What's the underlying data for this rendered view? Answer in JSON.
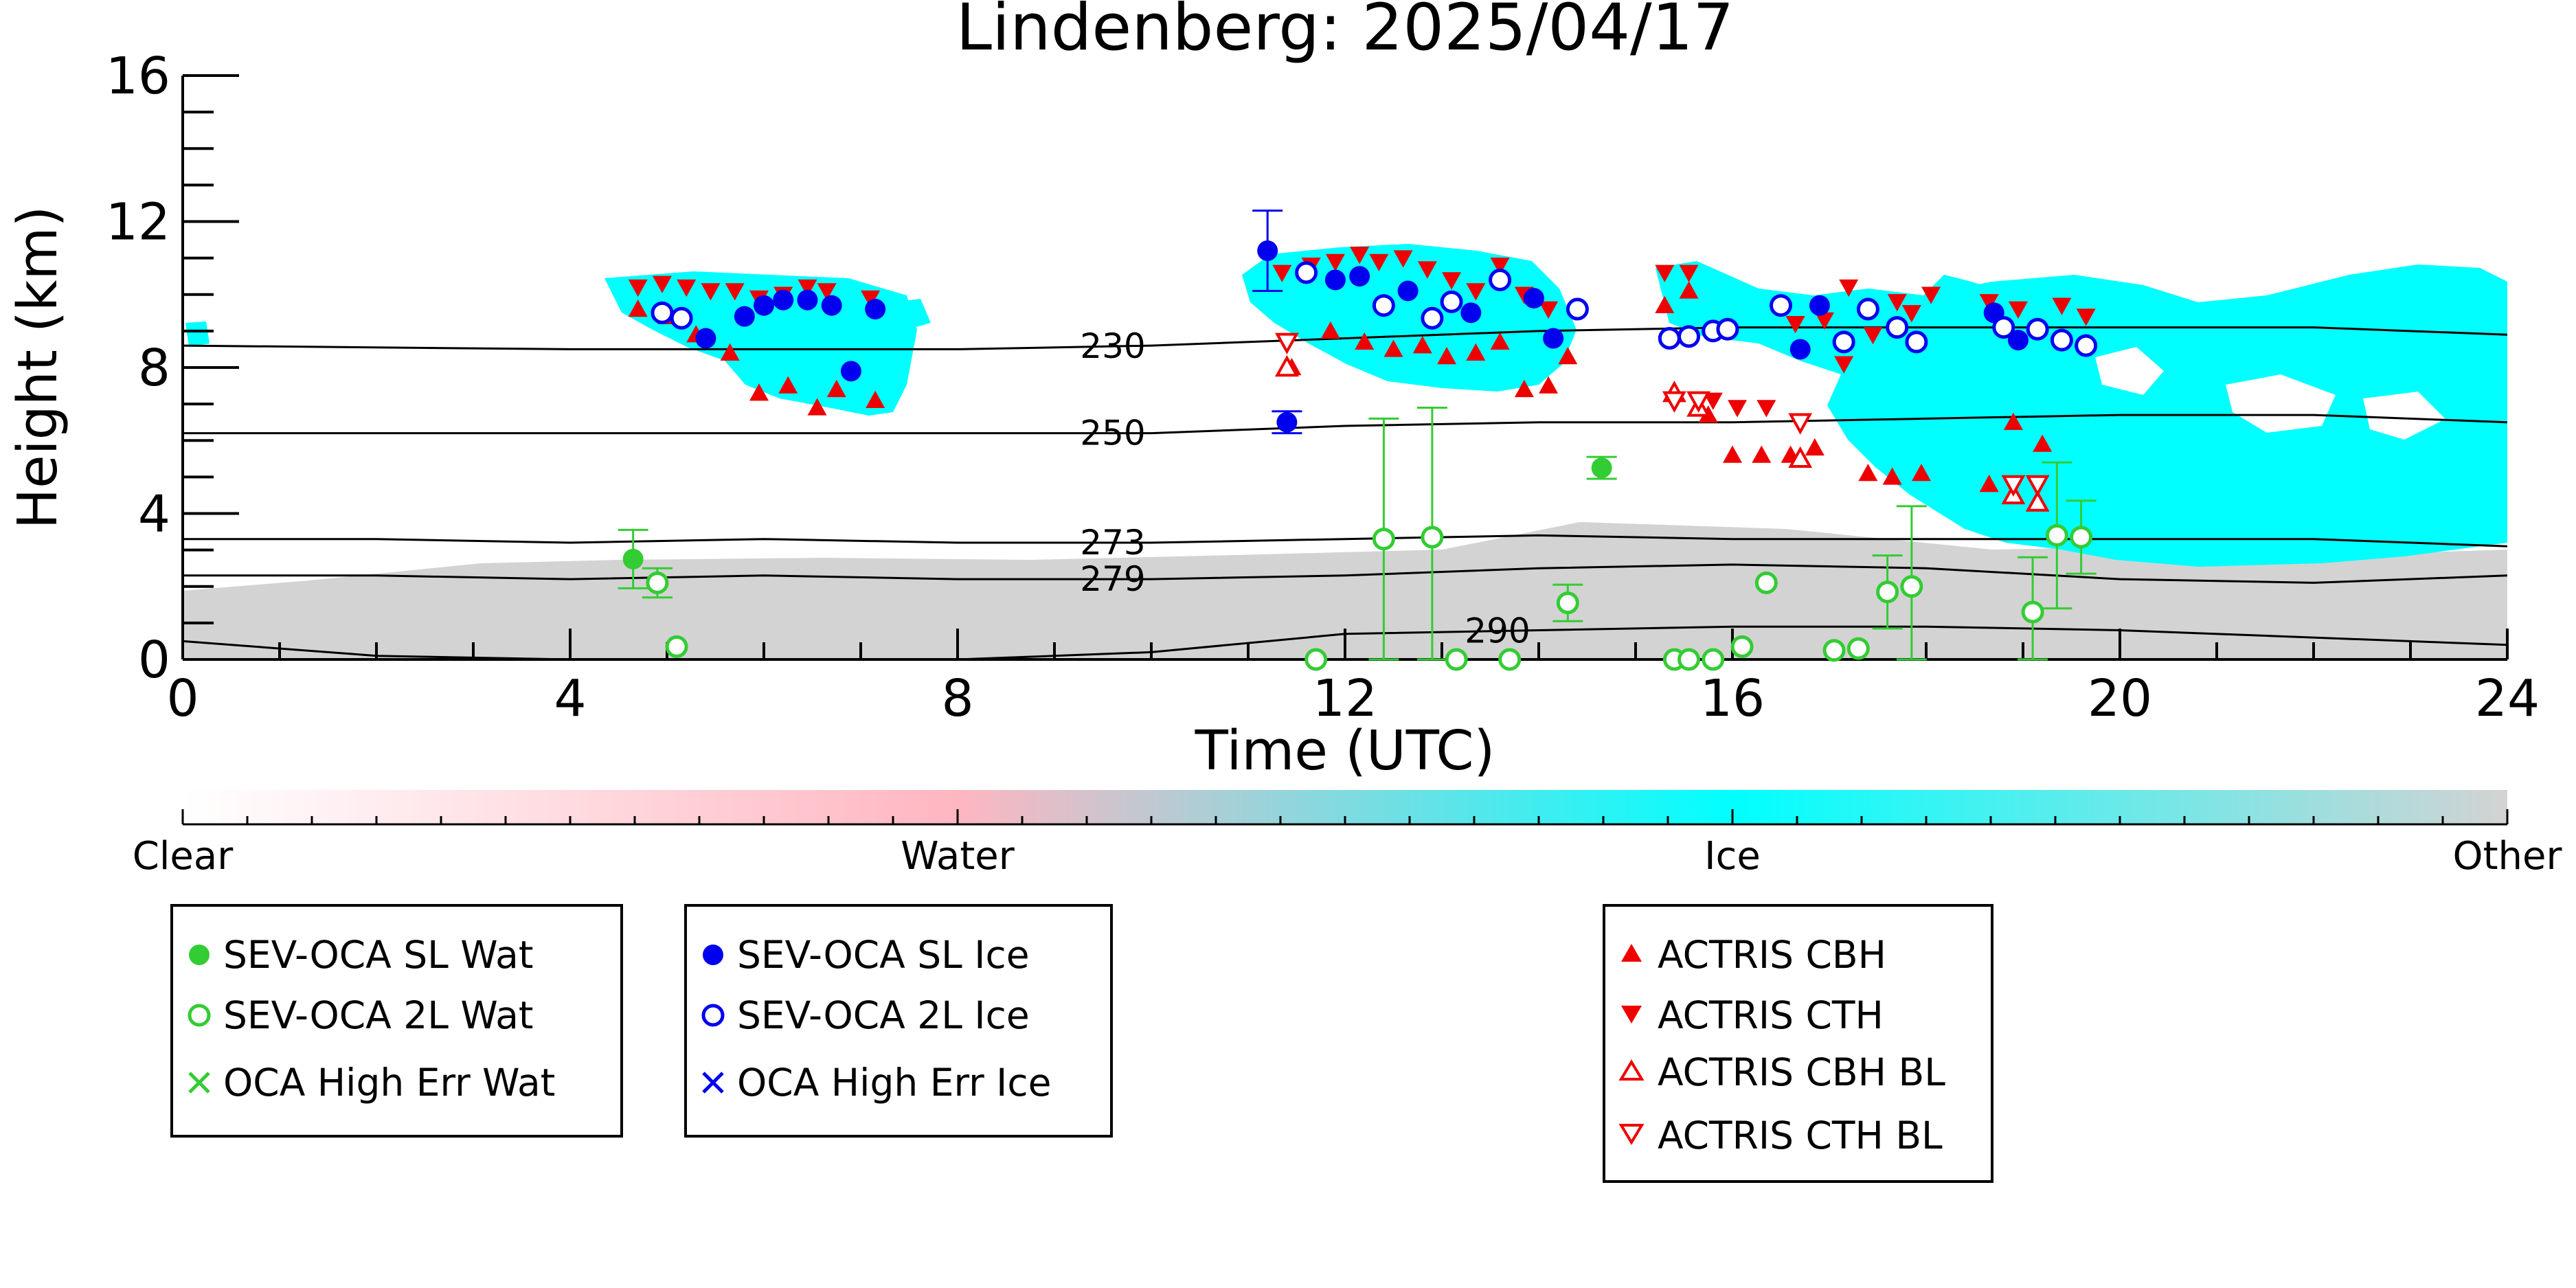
{
  "chart_data": {
    "type": "scatter",
    "title": "Lindenberg: 2025/04/17",
    "xlabel": "Time (UTC)",
    "ylabel": "Height (km)",
    "xlim": [
      0,
      24
    ],
    "ylim": [
      0,
      16
    ],
    "x_ticks": [
      0,
      4,
      8,
      12,
      16,
      20,
      24
    ],
    "y_ticks": [
      0,
      4,
      8,
      12,
      16
    ],
    "grid": false,
    "background_classes": {
      "labels": [
        "Clear",
        "Water",
        "Ice",
        "Other"
      ],
      "colors": {
        "Clear": "#ffffff",
        "Water": "#ffb6c1",
        "Ice": "#00ffff",
        "Other": "#d3d3d3"
      }
    },
    "isotherms": [
      {
        "label": "230",
        "x": [
          0,
          4,
          8,
          10,
          12,
          14,
          16,
          18,
          20,
          22,
          24
        ],
        "y": [
          8.6,
          8.5,
          8.5,
          8.6,
          8.8,
          9.0,
          9.1,
          9.1,
          9.1,
          9.1,
          8.9
        ]
      },
      {
        "label": "250",
        "x": [
          0,
          4,
          8,
          10,
          12,
          14,
          16,
          18,
          20,
          22,
          24
        ],
        "y": [
          6.2,
          6.2,
          6.2,
          6.2,
          6.4,
          6.5,
          6.5,
          6.6,
          6.7,
          6.7,
          6.5
        ]
      },
      {
        "label": "273",
        "x": [
          0,
          2,
          4,
          6,
          8,
          10,
          12,
          14,
          16,
          18,
          20,
          22,
          24
        ],
        "y": [
          3.3,
          3.3,
          3.2,
          3.3,
          3.2,
          3.2,
          3.3,
          3.4,
          3.3,
          3.3,
          3.3,
          3.3,
          3.1
        ]
      },
      {
        "label": "279",
        "x": [
          0,
          2,
          4,
          6,
          8,
          10,
          12,
          14,
          16,
          18,
          20,
          22,
          24
        ],
        "y": [
          2.3,
          2.3,
          2.2,
          2.3,
          2.2,
          2.2,
          2.3,
          2.5,
          2.6,
          2.5,
          2.2,
          2.1,
          2.3
        ]
      },
      {
        "label": "290",
        "x": [
          0,
          2,
          4,
          6,
          8,
          10,
          12,
          14,
          16,
          18,
          20,
          22,
          24
        ],
        "y": [
          0.5,
          0.1,
          0.0,
          0.0,
          0.0,
          0.2,
          0.7,
          0.8,
          0.9,
          0.9,
          0.8,
          0.6,
          0.4
        ]
      }
    ],
    "series": [
      {
        "name": "SEV-OCA SL Wat",
        "color": "#33cc33",
        "marker": "filled-circle",
        "points": [
          [
            4.65,
            2.75,
            0.8
          ],
          [
            14.65,
            5.25,
            0.3
          ]
        ]
      },
      {
        "name": "SEV-OCA 2L Wat",
        "color": "#33cc33",
        "marker": "open-circle",
        "points": [
          [
            4.9,
            2.1,
            0.4
          ],
          [
            5.1,
            0.35,
            0
          ],
          [
            11.7,
            0.0,
            0
          ],
          [
            12.4,
            3.3,
            3.3
          ],
          [
            12.9,
            3.35,
            3.55
          ],
          [
            13.15,
            0.0,
            0
          ],
          [
            13.7,
            0.0,
            0
          ],
          [
            14.3,
            1.55,
            0.5
          ],
          [
            15.4,
            0.0,
            0
          ],
          [
            15.55,
            0.0,
            0
          ],
          [
            15.8,
            0.0,
            0
          ],
          [
            16.1,
            0.35,
            0
          ],
          [
            16.35,
            2.1,
            0
          ],
          [
            17.05,
            0.25,
            0
          ],
          [
            17.3,
            0.3,
            0
          ],
          [
            17.6,
            1.85,
            1.0
          ],
          [
            17.85,
            2.0,
            2.2
          ],
          [
            19.1,
            1.3,
            1.5
          ],
          [
            19.35,
            3.4,
            2.0
          ],
          [
            19.6,
            3.35,
            1.0
          ]
        ]
      },
      {
        "name": "OCA High Err Wat",
        "color": "#33cc33",
        "marker": "x",
        "points": []
      },
      {
        "name": "SEV-OCA SL Ice",
        "color": "#0000ee",
        "marker": "filled-circle",
        "points": [
          [
            5.4,
            8.8,
            0
          ],
          [
            5.8,
            9.4,
            0
          ],
          [
            6.0,
            9.7,
            0
          ],
          [
            6.2,
            9.85,
            0
          ],
          [
            6.45,
            9.85,
            0
          ],
          [
            6.7,
            9.7,
            0
          ],
          [
            6.9,
            7.9,
            0
          ],
          [
            7.15,
            9.6,
            0
          ],
          [
            11.2,
            11.2,
            1.1
          ],
          [
            11.4,
            6.5,
            0.3
          ],
          [
            11.9,
            10.4,
            0
          ],
          [
            12.15,
            10.5,
            0
          ],
          [
            12.65,
            10.1,
            0
          ],
          [
            13.3,
            9.5,
            0
          ],
          [
            13.95,
            9.9,
            0
          ],
          [
            14.15,
            8.8,
            0
          ],
          [
            16.7,
            8.5,
            0
          ],
          [
            16.9,
            9.7,
            0
          ],
          [
            18.7,
            9.5,
            0
          ],
          [
            18.95,
            8.75,
            0
          ]
        ]
      },
      {
        "name": "SEV-OCA 2L Ice",
        "color": "#0000ee",
        "marker": "open-circle",
        "points": [
          [
            4.95,
            9.5,
            0
          ],
          [
            5.15,
            9.35,
            0
          ],
          [
            11.6,
            10.6,
            0
          ],
          [
            12.4,
            9.7,
            0
          ],
          [
            12.9,
            9.35,
            0
          ],
          [
            13.1,
            9.8,
            0
          ],
          [
            13.6,
            10.4,
            0
          ],
          [
            14.4,
            9.6,
            0
          ],
          [
            15.35,
            8.8,
            0
          ],
          [
            15.55,
            8.85,
            0
          ],
          [
            15.8,
            9.0,
            0
          ],
          [
            15.95,
            9.05,
            0
          ],
          [
            16.5,
            9.7,
            0
          ],
          [
            17.15,
            8.7,
            0
          ],
          [
            17.4,
            9.6,
            0
          ],
          [
            17.7,
            9.1,
            0
          ],
          [
            17.9,
            8.7,
            0
          ],
          [
            18.8,
            9.1,
            0
          ],
          [
            19.15,
            9.05,
            0
          ],
          [
            19.4,
            8.75,
            0
          ],
          [
            19.65,
            8.6,
            0
          ]
        ]
      },
      {
        "name": "OCA High Err Ice",
        "color": "#0000ee",
        "marker": "x",
        "points": []
      },
      {
        "name": "ACTRIS CBH",
        "color": "#ee0000",
        "marker": "filled-triangle-up",
        "points": [
          [
            4.7,
            9.6,
            0
          ],
          [
            5.0,
            9.4,
            0
          ],
          [
            5.3,
            8.9,
            0
          ],
          [
            5.65,
            8.4,
            0
          ],
          [
            5.95,
            7.3,
            0
          ],
          [
            6.25,
            7.5,
            0
          ],
          [
            6.55,
            6.9,
            0
          ],
          [
            6.75,
            7.4,
            0
          ],
          [
            7.15,
            7.1,
            0
          ],
          [
            11.45,
            8.0,
            0
          ],
          [
            11.85,
            9.0,
            0
          ],
          [
            12.2,
            8.7,
            0
          ],
          [
            12.5,
            8.5,
            0
          ],
          [
            12.8,
            8.6,
            0
          ],
          [
            13.05,
            8.3,
            0
          ],
          [
            13.35,
            8.4,
            0
          ],
          [
            13.6,
            8.7,
            0
          ],
          [
            13.85,
            7.4,
            0
          ],
          [
            14.1,
            7.5,
            0
          ],
          [
            14.3,
            8.3,
            0
          ],
          [
            15.3,
            9.7,
            0
          ],
          [
            15.55,
            10.1,
            0
          ],
          [
            15.75,
            6.7,
            0
          ],
          [
            16.0,
            5.6,
            0
          ],
          [
            16.3,
            5.6,
            0
          ],
          [
            16.6,
            5.6,
            0
          ],
          [
            16.85,
            5.8,
            0
          ],
          [
            17.4,
            5.1,
            0
          ],
          [
            17.65,
            5.0,
            0
          ],
          [
            17.95,
            5.1,
            0
          ],
          [
            18.65,
            4.8,
            0
          ],
          [
            18.9,
            6.5,
            0
          ],
          [
            19.2,
            5.9,
            0
          ]
        ]
      },
      {
        "name": "ACTRIS CTH",
        "color": "#ee0000",
        "marker": "filled-triangle-down",
        "points": [
          [
            4.7,
            10.2,
            0
          ],
          [
            4.95,
            10.3,
            0
          ],
          [
            5.2,
            10.2,
            0
          ],
          [
            5.45,
            10.1,
            0
          ],
          [
            5.7,
            10.1,
            0
          ],
          [
            5.95,
            9.9,
            0
          ],
          [
            6.2,
            10.0,
            0
          ],
          [
            6.45,
            10.2,
            0
          ],
          [
            6.65,
            10.1,
            0
          ],
          [
            7.1,
            9.9,
            0
          ],
          [
            11.35,
            10.6,
            0
          ],
          [
            11.65,
            10.8,
            0
          ],
          [
            11.9,
            10.9,
            0
          ],
          [
            12.15,
            11.1,
            0
          ],
          [
            12.35,
            10.9,
            0
          ],
          [
            12.6,
            11.0,
            0
          ],
          [
            12.85,
            10.7,
            0
          ],
          [
            13.1,
            10.4,
            0
          ],
          [
            13.35,
            10.1,
            0
          ],
          [
            13.6,
            10.8,
            0
          ],
          [
            13.85,
            10.0,
            0
          ],
          [
            14.1,
            9.6,
            0
          ],
          [
            15.3,
            10.6,
            0
          ],
          [
            15.55,
            10.6,
            0
          ],
          [
            15.8,
            7.1,
            0
          ],
          [
            16.05,
            6.9,
            0
          ],
          [
            16.35,
            6.9,
            0
          ],
          [
            16.65,
            9.2,
            0
          ],
          [
            16.95,
            9.3,
            0
          ],
          [
            17.15,
            8.1,
            0
          ],
          [
            17.2,
            10.2,
            0
          ],
          [
            17.45,
            8.9,
            0
          ],
          [
            17.7,
            9.8,
            0
          ],
          [
            17.85,
            9.5,
            0
          ],
          [
            18.05,
            10.0,
            0
          ],
          [
            18.65,
            9.8,
            0
          ],
          [
            18.95,
            9.6,
            0
          ],
          [
            19.4,
            9.7,
            0
          ],
          [
            19.65,
            9.4,
            0
          ]
        ]
      },
      {
        "name": "ACTRIS CBH BL",
        "color": "#ee0000",
        "marker": "open-triangle-up",
        "points": [
          [
            11.4,
            8.0,
            0
          ],
          [
            15.4,
            7.3,
            0
          ],
          [
            15.65,
            6.9,
            0
          ],
          [
            16.7,
            5.5,
            0
          ],
          [
            18.9,
            4.5,
            0
          ],
          [
            19.15,
            4.3,
            0
          ]
        ]
      },
      {
        "name": "ACTRIS CTH BL",
        "color": "#ee0000",
        "marker": "open-triangle-down",
        "points": [
          [
            11.4,
            8.7,
            0
          ],
          [
            15.4,
            7.1,
            0
          ],
          [
            15.65,
            7.1,
            0
          ],
          [
            16.7,
            6.5,
            0
          ],
          [
            18.9,
            4.8,
            0
          ],
          [
            19.15,
            4.8,
            0
          ]
        ]
      }
    ]
  },
  "colorbar": {
    "labels": [
      "Clear",
      "Water",
      "Ice",
      "Other"
    ]
  },
  "legends": [
    {
      "entries": [
        "SEV-OCA SL Wat",
        "SEV-OCA 2L Wat",
        "OCA High Err Wat"
      ]
    },
    {
      "entries": [
        "SEV-OCA SL Ice",
        "SEV-OCA 2L Ice",
        "OCA High Err Ice"
      ]
    },
    {
      "entries": [
        "ACTRIS CBH",
        "ACTRIS CTH",
        "ACTRIS CBH BL",
        "ACTRIS CTH BL"
      ]
    }
  ]
}
